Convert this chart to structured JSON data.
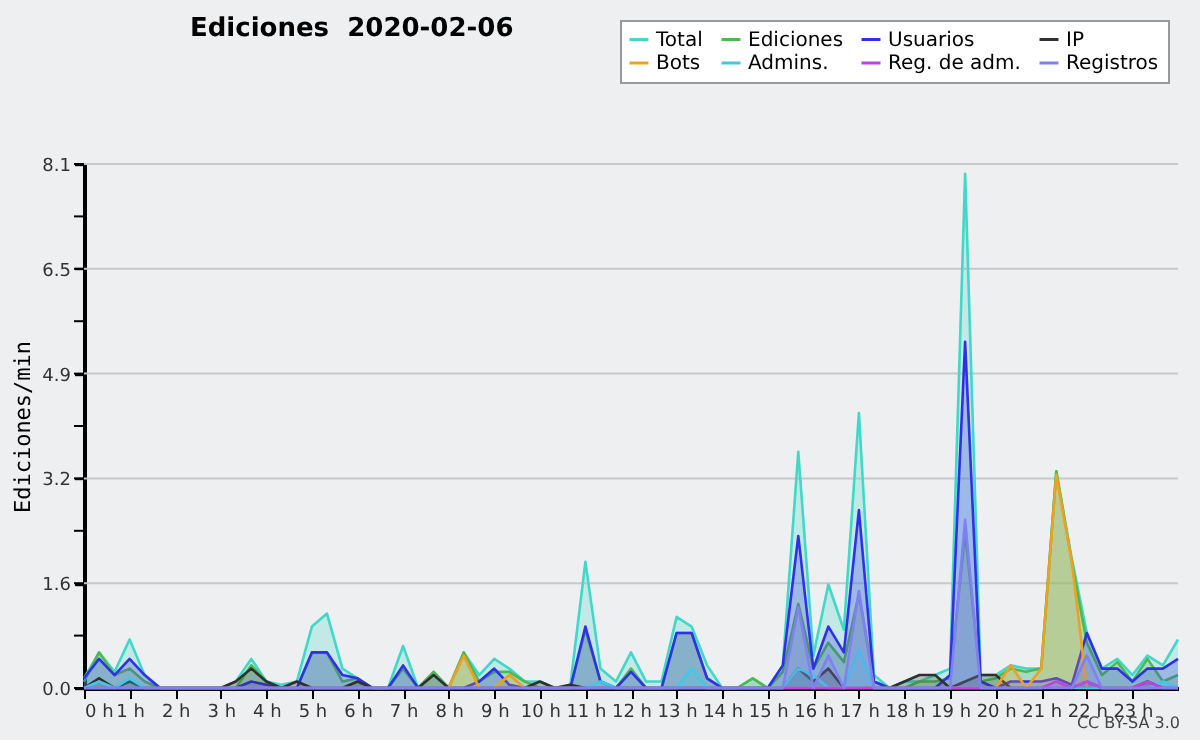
{
  "chart_data": {
    "type": "area",
    "title": "Ediciones  2020-02-06",
    "ylabel": "Ediciones/min",
    "annotations": [
      "CC BY-SA 3.0"
    ],
    "x": [
      0,
      0.33,
      0.67,
      1,
      1.33,
      1.67,
      2,
      2.33,
      2.67,
      3,
      3.33,
      3.67,
      4,
      4.33,
      4.67,
      5,
      5.33,
      5.67,
      6,
      6.33,
      6.67,
      7,
      7.33,
      7.67,
      8,
      8.33,
      8.67,
      9,
      9.33,
      9.67,
      10,
      10.33,
      10.67,
      11,
      11.33,
      11.67,
      12,
      12.33,
      12.67,
      13,
      13.33,
      13.67,
      14,
      14.33,
      14.67,
      15,
      15.33,
      15.67,
      16,
      16.33,
      16.67,
      17,
      17.33,
      17.67,
      18,
      18.33,
      18.67,
      19,
      19.33,
      19.67,
      20,
      20.33,
      20.67,
      21,
      21.33,
      21.67,
      22,
      22.33,
      22.67,
      23,
      23.33,
      23.67,
      24
    ],
    "xlim": [
      0,
      24
    ],
    "xticks": [
      {
        "value": 0,
        "label": "0 h"
      },
      {
        "value": 1,
        "label": "1 h"
      },
      {
        "value": 2,
        "label": "2 h"
      },
      {
        "value": 3,
        "label": "3 h"
      },
      {
        "value": 4,
        "label": "4 h"
      },
      {
        "value": 5,
        "label": "5 h"
      },
      {
        "value": 6,
        "label": "6 h"
      },
      {
        "value": 7,
        "label": "7 h"
      },
      {
        "value": 8,
        "label": "8 h"
      },
      {
        "value": 9,
        "label": "9 h"
      },
      {
        "value": 10,
        "label": "10 h"
      },
      {
        "value": 11,
        "label": "11 h"
      },
      {
        "value": 12,
        "label": "12 h"
      },
      {
        "value": 13,
        "label": "13 h"
      },
      {
        "value": 14,
        "label": "14 h"
      },
      {
        "value": 15,
        "label": "15 h"
      },
      {
        "value": 16,
        "label": "16 h"
      },
      {
        "value": 17,
        "label": "17 h"
      },
      {
        "value": 18,
        "label": "18 h"
      },
      {
        "value": 19,
        "label": "19 h"
      },
      {
        "value": 20,
        "label": "20 h"
      },
      {
        "value": 21,
        "label": "21 h"
      },
      {
        "value": 22,
        "label": "22 h"
      },
      {
        "value": 23,
        "label": "23 h"
      }
    ],
    "ylim": [
      0,
      8.1
    ],
    "yticks": [
      {
        "value": 0,
        "label": "0.0"
      },
      {
        "value": 0.81,
        "label": null
      },
      {
        "value": 1.62,
        "label": "1.6"
      },
      {
        "value": 2.43,
        "label": null
      },
      {
        "value": 3.24,
        "label": "3.2"
      },
      {
        "value": 4.05,
        "label": null
      },
      {
        "value": 4.86,
        "label": "4.9"
      },
      {
        "value": 5.67,
        "label": null
      },
      {
        "value": 6.48,
        "label": "6.5"
      },
      {
        "value": 7.29,
        "label": null
      },
      {
        "value": 8.1,
        "label": "8.1"
      }
    ],
    "grid": "y",
    "legend": "top right",
    "marker": "none",
    "series": [
      {
        "name": "Total",
        "color": "#40d8c8",
        "values": [
          0.15,
          0.55,
          0.25,
          0.75,
          0.2,
          0,
          0,
          0,
          0,
          0,
          0.1,
          0.45,
          0.1,
          0.05,
          0.1,
          0.95,
          1.15,
          0.3,
          0.15,
          0,
          0,
          0.65,
          0,
          0.25,
          0,
          0.55,
          0.2,
          0.45,
          0.3,
          0.1,
          0.1,
          0,
          0.05,
          1.95,
          0.3,
          0.1,
          0.55,
          0.1,
          0.1,
          1.1,
          0.95,
          0.35,
          0,
          0,
          0.15,
          0,
          0.35,
          3.65,
          0.5,
          1.6,
          0.9,
          4.25,
          0.2,
          0,
          0.1,
          0.1,
          0.2,
          0.3,
          7.95,
          0.2,
          0.2,
          0.35,
          0.3,
          0.3,
          3.35,
          2.0,
          0.85,
          0.3,
          0.45,
          0.2,
          0.5,
          0.35,
          0.75
        ]
      },
      {
        "name": "Ediciones",
        "color": "#50b850",
        "values": [
          0.1,
          0.55,
          0.2,
          0.3,
          0.1,
          0,
          0,
          0,
          0,
          0,
          0,
          0.35,
          0.1,
          0,
          0,
          0.55,
          0.55,
          0.1,
          0.15,
          0,
          0,
          0.3,
          0,
          0.25,
          0,
          0.55,
          0.1,
          0.25,
          0.25,
          0.1,
          0,
          0,
          0,
          0.9,
          0.1,
          0,
          0.3,
          0,
          0,
          0.85,
          0.85,
          0.15,
          0,
          0,
          0.15,
          0,
          0.25,
          1.3,
          0.3,
          0.7,
          0.4,
          1.45,
          0.1,
          0,
          0,
          0.1,
          0.1,
          0.15,
          2.4,
          0.1,
          0.15,
          0.3,
          0.25,
          0.3,
          3.35,
          1.95,
          0.7,
          0.2,
          0.4,
          0.1,
          0.45,
          0.1,
          0.2
        ]
      },
      {
        "name": "Usuarios",
        "color": "#3030e8",
        "values": [
          0.15,
          0.45,
          0.2,
          0.45,
          0.2,
          0,
          0,
          0,
          0,
          0,
          0,
          0.1,
          0.05,
          0,
          0,
          0.55,
          0.55,
          0.2,
          0.15,
          0,
          0,
          0.35,
          0,
          0,
          0,
          0,
          0.1,
          0.3,
          0.05,
          0,
          0,
          0,
          0,
          0.95,
          0.1,
          0,
          0.25,
          0,
          0,
          0.85,
          0.85,
          0.15,
          0,
          0,
          0,
          0,
          0.35,
          2.35,
          0.3,
          0.95,
          0.55,
          2.75,
          0.1,
          0,
          0,
          0,
          0,
          0.2,
          5.35,
          0.1,
          0,
          0.1,
          0.1,
          0.1,
          0.15,
          0.05,
          0.85,
          0.3,
          0.3,
          0.1,
          0.3,
          0.3,
          0.45
        ]
      },
      {
        "name": "IP",
        "color": "#303030",
        "values": [
          0,
          0.15,
          0,
          0.1,
          0,
          0,
          0,
          0,
          0,
          0,
          0.1,
          0.3,
          0.1,
          0,
          0.1,
          0,
          0,
          0,
          0.1,
          0,
          0,
          0,
          0,
          0.2,
          0,
          0,
          0,
          0,
          0,
          0,
          0.1,
          0,
          0.05,
          0,
          0,
          0,
          0,
          0,
          0,
          0,
          0,
          0,
          0,
          0,
          0,
          0,
          0,
          0.3,
          0.1,
          0.3,
          0,
          0,
          0,
          0,
          0.1,
          0.2,
          0.2,
          0,
          0.1,
          0.2,
          0.2,
          0,
          0,
          0,
          0,
          0,
          0.1,
          0,
          0,
          0,
          0.1,
          0,
          0
        ]
      },
      {
        "name": "Bots",
        "color": "#f0a020",
        "values": [
          0,
          0,
          0,
          0,
          0,
          0,
          0,
          0,
          0,
          0,
          0,
          0,
          0,
          0,
          0,
          0,
          0,
          0,
          0,
          0,
          0,
          0,
          0,
          0,
          0,
          0.5,
          0,
          0,
          0.2,
          0,
          0,
          0,
          0,
          0,
          0,
          0,
          0,
          0,
          0,
          0,
          0,
          0,
          0,
          0,
          0,
          0,
          0,
          0,
          0,
          0,
          0,
          0,
          0,
          0,
          0,
          0,
          0,
          0,
          0,
          0,
          0,
          0.35,
          0,
          0.3,
          3.3,
          1.95,
          0,
          0,
          0,
          0,
          0,
          0,
          0
        ]
      },
      {
        "name": "Admins.",
        "color": "#40c8e8",
        "values": [
          0,
          0.1,
          0,
          0.15,
          0,
          0,
          0,
          0,
          0,
          0,
          0,
          0,
          0,
          0,
          0,
          0,
          0,
          0,
          0,
          0,
          0,
          0,
          0,
          0,
          0,
          0,
          0,
          0,
          0,
          0,
          0,
          0,
          0,
          0,
          0.1,
          0,
          0,
          0,
          0,
          0,
          0.3,
          0,
          0,
          0,
          0,
          0,
          0,
          0.3,
          0.2,
          0,
          0,
          0.6,
          0,
          0,
          0,
          0,
          0,
          0,
          0,
          0,
          0,
          0,
          0,
          0,
          0.1,
          0,
          0,
          0,
          0,
          0,
          0,
          0.1,
          0
        ]
      },
      {
        "name": "Reg. de adm.",
        "color": "#c040e0",
        "values": [
          0,
          0,
          0,
          0,
          0,
          0,
          0,
          0,
          0,
          0,
          0,
          0,
          0,
          0,
          0,
          0,
          0,
          0,
          0,
          0,
          0,
          0,
          0,
          0,
          0,
          0,
          0,
          0,
          0,
          0,
          0,
          0,
          0,
          0,
          0,
          0,
          0,
          0,
          0,
          0,
          0,
          0,
          0,
          0,
          0,
          0,
          0,
          0,
          0,
          0,
          0,
          0,
          0,
          0,
          0,
          0,
          0,
          0,
          0,
          0,
          0,
          0,
          0,
          0,
          0.1,
          0,
          0.1,
          0,
          0,
          0,
          0.1,
          0,
          0
        ]
      },
      {
        "name": "Registros",
        "color": "#8080f0",
        "values": [
          0,
          0,
          0,
          0,
          0,
          0,
          0,
          0,
          0,
          0,
          0,
          0,
          0,
          0,
          0,
          0,
          0,
          0,
          0,
          0,
          0,
          0,
          0,
          0,
          0,
          0,
          0,
          0,
          0,
          0,
          0,
          0,
          0,
          0,
          0,
          0,
          0,
          0,
          0,
          0,
          0,
          0,
          0,
          0,
          0,
          0,
          0,
          1.25,
          0,
          0.5,
          0,
          1.5,
          0,
          0,
          0,
          0,
          0,
          0,
          2.6,
          0,
          0,
          0,
          0,
          0,
          0,
          0,
          0.5,
          0,
          0,
          0,
          0,
          0,
          0
        ]
      }
    ]
  }
}
